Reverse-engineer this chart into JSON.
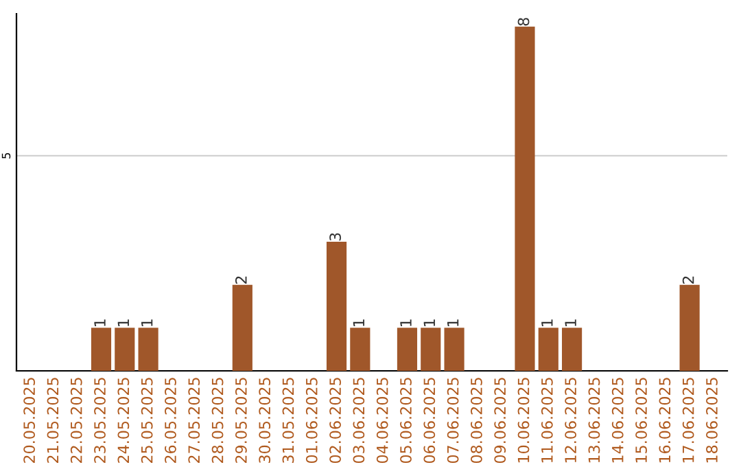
{
  "chart_data": {
    "type": "bar",
    "categories": [
      "20.05.2025",
      "21.05.2025",
      "22.05.2025",
      "23.05.2025",
      "24.05.2025",
      "25.05.2025",
      "26.05.2025",
      "27.05.2025",
      "28.05.2025",
      "29.05.2025",
      "30.05.2025",
      "31.05.2025",
      "01.06.2025",
      "02.06.2025",
      "03.06.2025",
      "04.06.2025",
      "05.06.2025",
      "06.06.2025",
      "07.06.2025",
      "08.06.2025",
      "09.06.2025",
      "10.06.2025",
      "11.06.2025",
      "12.06.2025",
      "13.06.2025",
      "14.06.2025",
      "15.06.2025",
      "16.06.2025",
      "17.06.2025",
      "18.06.2025"
    ],
    "values": [
      0,
      0,
      0,
      1,
      1,
      1,
      0,
      0,
      0,
      2,
      0,
      0,
      0,
      3,
      1,
      0,
      1,
      1,
      1,
      0,
      0,
      8,
      1,
      1,
      0,
      0,
      0,
      0,
      2,
      0
    ],
    "value_labels": [
      null,
      null,
      null,
      "1",
      "1",
      "1",
      null,
      null,
      null,
      "2",
      null,
      null,
      null,
      "3",
      "1",
      null,
      "1",
      "1",
      "1",
      null,
      null,
      "8",
      "1",
      "1",
      null,
      null,
      null,
      null,
      "2",
      null
    ],
    "color": "#a0572a",
    "ylim": [
      0,
      8.3
    ],
    "yticks": [
      5
    ],
    "grid": "y"
  }
}
